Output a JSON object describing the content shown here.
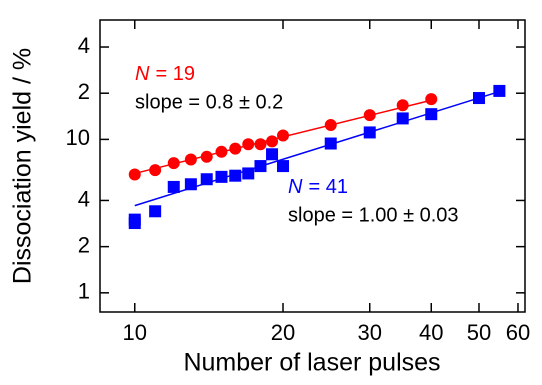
{
  "chart_data": {
    "type": "scatter",
    "xlabel": "Number of laser pulses",
    "ylabel": "Dissociation yield / %",
    "xscale": "log",
    "yscale": "log",
    "xlim": [
      8.5,
      62
    ],
    "ylim": [
      0.75,
      60
    ],
    "xticks": [
      10,
      20,
      30,
      40,
      50,
      60
    ],
    "yticks": [
      1,
      2,
      4,
      10,
      {
        "value": 20,
        "label": "2"
      },
      {
        "value": 40,
        "label": "4"
      }
    ],
    "series": [
      {
        "color": "#ff0000",
        "marker": "circle",
        "x": [
          10,
          11,
          12,
          13,
          14,
          15,
          16,
          17,
          18,
          19,
          20,
          25,
          30,
          35,
          40
        ],
        "values": [
          5.9,
          6.3,
          7.0,
          7.4,
          7.7,
          8.3,
          8.7,
          9.3,
          9.3,
          9.7,
          10.6,
          12.4,
          14.4,
          16.7,
          18.3
        ],
        "fit": {
          "x": [
            10,
            40
          ],
          "values": [
            6.0,
            18.0
          ]
        },
        "label_var": "N",
        "label_eq": "= 19",
        "label_slope": "slope = 0.8 ± 0.2"
      },
      {
        "color": "#0000ff",
        "marker": "square",
        "x": [
          10,
          10,
          11,
          12,
          13,
          14,
          15,
          16,
          17,
          18,
          19,
          20,
          25,
          30,
          35,
          40,
          50,
          55
        ],
        "values": [
          3.0,
          2.85,
          3.4,
          4.9,
          5.1,
          5.5,
          5.7,
          5.8,
          6.0,
          6.7,
          8.0,
          6.7,
          9.4,
          11.1,
          13.7,
          14.6,
          18.6,
          20.7
        ],
        "fit": {
          "x": [
            10,
            55
          ],
          "values": [
            3.7,
            20.5
          ]
        },
        "label_var": "N",
        "label_eq": "= 41",
        "label_slope": "slope = 1.00 ± 0.03"
      }
    ]
  }
}
